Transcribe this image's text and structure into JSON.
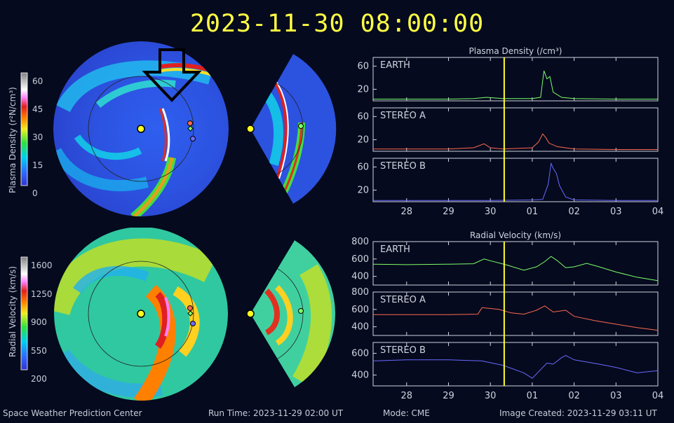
{
  "header": {
    "timestamp": "2023-11-30 08:00:00"
  },
  "colorbars": [
    {
      "label": "Plasma Density (r²N/cm³)",
      "ticks": [
        "60",
        "45",
        "30",
        "15",
        "0"
      ]
    },
    {
      "label": "Radial Velocity (km/s)",
      "ticks": [
        "1600",
        "1250",
        "900",
        "550",
        "200"
      ]
    }
  ],
  "panels": {
    "density": {
      "title": "Plasma Density (/cm³)",
      "series": [
        "EARTH",
        "STEREO A",
        "STEREO B"
      ],
      "yticks": [
        "60",
        "20"
      ]
    },
    "velocity": {
      "title": "Radial Velocity (km/s)",
      "series": [
        "EARTH",
        "STEREO A",
        "STEREO B"
      ],
      "yticks": [
        [
          "800",
          "600",
          "400"
        ],
        [
          "800",
          "600",
          "400"
        ],
        [
          "600",
          "400"
        ]
      ]
    },
    "xticks": [
      "28",
      "29",
      "30",
      "01",
      "02",
      "03",
      "04"
    ]
  },
  "footer": {
    "org": "Space Weather Prediction Center",
    "run_time": "Run Time: 2023-11-29 02:00 UT",
    "mode": "Mode: CME",
    "image_created": "Image Created: 2023-11-29 03:11 UT"
  },
  "colors": {
    "earth": "#7dff6a",
    "stereo_a": "#ff6a50",
    "stereo_b": "#6a6aff",
    "cursor": "#ffff30",
    "background": "#050a1e"
  },
  "chart_data": [
    {
      "type": "line",
      "title": "Plasma Density (/cm³)",
      "panel": "EARTH",
      "x": [
        27.2,
        29.0,
        29.6,
        29.9,
        30.3,
        31.0,
        31.2,
        31.28,
        31.35,
        31.42,
        31.5,
        31.7,
        32.0,
        33.0,
        34.0
      ],
      "values": [
        3,
        3,
        4,
        6,
        4,
        4,
        6,
        52,
        38,
        42,
        15,
        6,
        4,
        3,
        3
      ],
      "ylim": [
        0,
        75
      ]
    },
    {
      "type": "line",
      "title": "Plasma Density (/cm³)",
      "panel": "STEREO A",
      "x": [
        27.2,
        29.0,
        29.6,
        29.85,
        30.0,
        30.3,
        31.0,
        31.15,
        31.25,
        31.32,
        31.4,
        31.6,
        32.0,
        33.0,
        34.0
      ],
      "values": [
        4,
        4,
        6,
        13,
        6,
        4,
        6,
        16,
        30,
        24,
        14,
        8,
        4,
        3,
        3
      ],
      "ylim": [
        0,
        75
      ]
    },
    {
      "type": "line",
      "title": "Plasma Density (/cm³)",
      "panel": "STEREO B",
      "x": [
        27.2,
        30.0,
        31.0,
        31.25,
        31.38,
        31.45,
        31.5,
        31.58,
        31.65,
        31.8,
        32.0,
        33.0,
        33.5,
        34.0
      ],
      "values": [
        2,
        2,
        3,
        4,
        30,
        66,
        58,
        48,
        28,
        8,
        3,
        2,
        2,
        2
      ],
      "ylim": [
        0,
        75
      ]
    },
    {
      "type": "line",
      "title": "Radial Velocity (km/s)",
      "panel": "EARTH",
      "x": [
        27.2,
        28.0,
        29.0,
        29.6,
        29.85,
        30.0,
        30.4,
        30.8,
        31.1,
        31.3,
        31.45,
        31.6,
        31.8,
        32.0,
        32.3,
        32.6,
        33.0,
        33.5,
        34.0
      ],
      "values": [
        540,
        535,
        540,
        545,
        600,
        580,
        530,
        470,
        510,
        570,
        630,
        580,
        500,
        510,
        550,
        510,
        450,
        390,
        350
      ],
      "ylim": [
        300,
        800
      ]
    },
    {
      "type": "line",
      "title": "Radial Velocity (km/s)",
      "panel": "STEREO A",
      "x": [
        27.2,
        28.0,
        29.0,
        29.7,
        29.8,
        30.2,
        30.5,
        30.8,
        31.1,
        31.3,
        31.5,
        31.8,
        32.0,
        32.5,
        33.0,
        33.5,
        34.0
      ],
      "values": [
        540,
        540,
        540,
        545,
        620,
        600,
        560,
        545,
        590,
        640,
        570,
        590,
        520,
        470,
        430,
        390,
        360
      ],
      "ylim": [
        300,
        800
      ]
    },
    {
      "type": "line",
      "title": "Radial Velocity (km/s)",
      "panel": "STEREO B",
      "x": [
        27.2,
        28.0,
        29.0,
        29.8,
        30.3,
        30.8,
        31.0,
        31.2,
        31.35,
        31.5,
        31.7,
        31.8,
        32.0,
        32.3,
        32.6,
        33.0,
        33.5,
        34.0
      ],
      "values": [
        530,
        540,
        540,
        530,
        490,
        420,
        370,
        450,
        510,
        500,
        560,
        580,
        540,
        520,
        500,
        470,
        420,
        440
      ],
      "ylim": [
        300,
        700
      ]
    }
  ]
}
